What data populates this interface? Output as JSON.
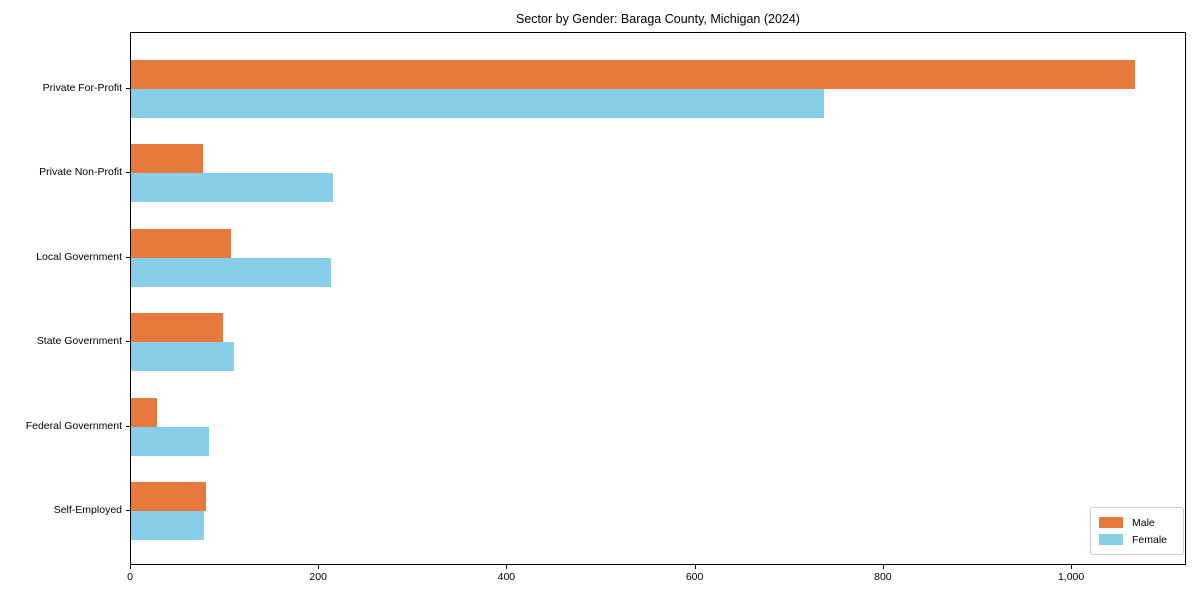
{
  "chart_data": {
    "type": "bar",
    "orientation": "horizontal",
    "title": "Sector by Gender: Baraga County, Michigan (2024)",
    "xlabel": "",
    "ylabel": "",
    "categories": [
      "Private For-Profit",
      "Private Non-Profit",
      "Local Government",
      "State Government",
      "Federal Government",
      "Self-Employed"
    ],
    "series": [
      {
        "name": "Male",
        "color": "#E8793D",
        "values": [
          1067,
          76,
          106,
          98,
          28,
          80
        ]
      },
      {
        "name": "Female",
        "color": "#87CEEB",
        "values": [
          736,
          215,
          212,
          109,
          83,
          78
        ]
      }
    ],
    "xlim": [
      0,
      1120
    ],
    "x_ticks": [
      0,
      200,
      400,
      600,
      800,
      1000
    ],
    "x_tick_labels": [
      "0",
      "200",
      "400",
      "600",
      "800",
      "1,000"
    ],
    "grid": false,
    "legend_position": "lower right"
  },
  "colors": {
    "axis": "#000000",
    "legend_border": "#cccccc",
    "background": "#ffffff"
  }
}
